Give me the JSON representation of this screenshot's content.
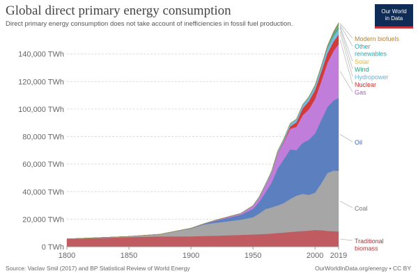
{
  "header": {
    "title": "Global direct primary energy consumption",
    "subtitle": "Direct primary energy consumption does not take account of inefficiencies in fossil fuel production."
  },
  "logo": {
    "line1": "Our World",
    "line2": "in Data"
  },
  "footer": {
    "source": "Source: Vaclav Smil (2017) and BP Statistical Review of World Energy",
    "url": "OurWorldInData.org/energy • CC BY"
  },
  "chart_data": {
    "type": "area",
    "stacked": true,
    "x": [
      1800,
      1850,
      1875,
      1900,
      1910,
      1920,
      1930,
      1940,
      1950,
      1955,
      1960,
      1965,
      1970,
      1975,
      1980,
      1985,
      1990,
      1995,
      2000,
      2005,
      2010,
      2015,
      2019
    ],
    "series": [
      {
        "name": "Traditional biomass",
        "color": "#c05b61",
        "values": [
          5600,
          7000,
          7500,
          7500,
          7800,
          8000,
          8300,
          8600,
          8900,
          9100,
          9300,
          9600,
          10000,
          10300,
          10700,
          11100,
          11400,
          11700,
          12200,
          12000,
          11500,
          11300,
          11100
        ]
      },
      {
        "name": "Coal",
        "color": "#a6a6a6",
        "values": [
          100,
          500,
          1600,
          5700,
          8200,
          9400,
          10200,
          11000,
          12500,
          15000,
          18000,
          19000,
          20000,
          21500,
          24000,
          26000,
          27000,
          26000,
          27000,
          34000,
          42000,
          44000,
          44000
        ]
      },
      {
        "name": "Oil",
        "color": "#5b7fbf",
        "values": [
          0,
          0,
          0,
          200,
          400,
          1500,
          2500,
          3500,
          6000,
          8500,
          12000,
          18000,
          27000,
          32000,
          36000,
          33000,
          37000,
          40000,
          43000,
          46000,
          48000,
          51000,
          53000
        ]
      },
      {
        "name": "Gas",
        "color": "#c07dd9",
        "values": [
          0,
          0,
          0,
          100,
          200,
          400,
          600,
          800,
          2100,
          3000,
          5000,
          7000,
          11000,
          12500,
          15000,
          17000,
          20000,
          22000,
          25000,
          28000,
          32000,
          36000,
          39000
        ]
      },
      {
        "name": "Nuclear",
        "color": "#d33a3a",
        "values": [
          0,
          0,
          0,
          0,
          0,
          0,
          0,
          0,
          0,
          0,
          0,
          100,
          200,
          700,
          1700,
          3200,
          5000,
          6000,
          6500,
          7000,
          7000,
          6800,
          7000
        ]
      },
      {
        "name": "Hydropower",
        "color": "#7cb7dc",
        "values": [
          0,
          0,
          0,
          0,
          50,
          100,
          200,
          300,
          400,
          700,
          1000,
          1200,
          1500,
          1700,
          2000,
          2200,
          2400,
          2700,
          2900,
          3200,
          3700,
          4200,
          4300
        ]
      },
      {
        "name": "Wind",
        "color": "#2f9e74",
        "values": [
          0,
          0,
          0,
          0,
          0,
          0,
          0,
          0,
          0,
          0,
          0,
          0,
          0,
          0,
          0,
          0,
          0,
          0,
          50,
          150,
          400,
          1000,
          1500
        ]
      },
      {
        "name": "Solar",
        "color": "#f2c94c",
        "values": [
          0,
          0,
          0,
          0,
          0,
          0,
          0,
          0,
          0,
          0,
          0,
          0,
          0,
          0,
          0,
          0,
          0,
          0,
          0,
          10,
          50,
          300,
          800
        ]
      },
      {
        "name": "Other renewables",
        "color": "#2aa7ad",
        "values": [
          0,
          0,
          0,
          0,
          0,
          0,
          0,
          0,
          0,
          0,
          0,
          0,
          50,
          100,
          200,
          300,
          400,
          500,
          600,
          700,
          900,
          1100,
          1200
        ]
      },
      {
        "name": "Modern biofuels",
        "color": "#b5843f",
        "values": [
          0,
          0,
          0,
          0,
          0,
          0,
          0,
          0,
          0,
          0,
          0,
          0,
          0,
          0,
          0,
          0,
          50,
          100,
          150,
          300,
          600,
          800,
          1000
        ]
      }
    ],
    "xlim": [
      1800,
      2019
    ],
    "ylim": [
      0,
      155000
    ],
    "x_ticks": [
      1800,
      1850,
      1900,
      1950,
      2000,
      2019
    ],
    "x_tick_labels": [
      "1800",
      "1850",
      "1900",
      "1950",
      "2000",
      "2019"
    ],
    "y_ticks": [
      0,
      20000,
      40000,
      60000,
      80000,
      100000,
      120000,
      140000
    ],
    "y_tick_labels": [
      "0 TWh",
      "20,000 TWh",
      "40,000 TWh",
      "60,000 TWh",
      "80,000 TWh",
      "100,000 TWh",
      "120,000 TWh",
      "140,000 TWh"
    ],
    "grid": "horizontal-dashed",
    "legend": "right-inline-labels",
    "legend_labels": [
      {
        "series": "Modern biofuels",
        "lines": [
          "Modern biofuels"
        ],
        "color": "#b5843f"
      },
      {
        "series": "Other renewables",
        "lines": [
          "Other",
          "renewables"
        ],
        "color": "#2aa7ad"
      },
      {
        "series": "Solar",
        "lines": [
          "Solar"
        ],
        "color": "#e8b923"
      },
      {
        "series": "Wind",
        "lines": [
          "Wind"
        ],
        "color": "#2f9e74"
      },
      {
        "series": "Hydropower",
        "lines": [
          "Hydropower"
        ],
        "color": "#62b3dd"
      },
      {
        "series": "Nuclear",
        "lines": [
          "Nuclear"
        ],
        "color": "#c62f2f"
      },
      {
        "series": "Gas",
        "lines": [
          "Gas"
        ],
        "color": "#b456c9"
      },
      {
        "series": "Oil",
        "lines": [
          "Oil"
        ],
        "color": "#3a66b0"
      },
      {
        "series": "Coal",
        "lines": [
          "Coal"
        ],
        "color": "#777777"
      },
      {
        "series": "Traditional biomass",
        "lines": [
          "Traditional",
          "biomass"
        ],
        "color": "#b1363d"
      }
    ]
  }
}
